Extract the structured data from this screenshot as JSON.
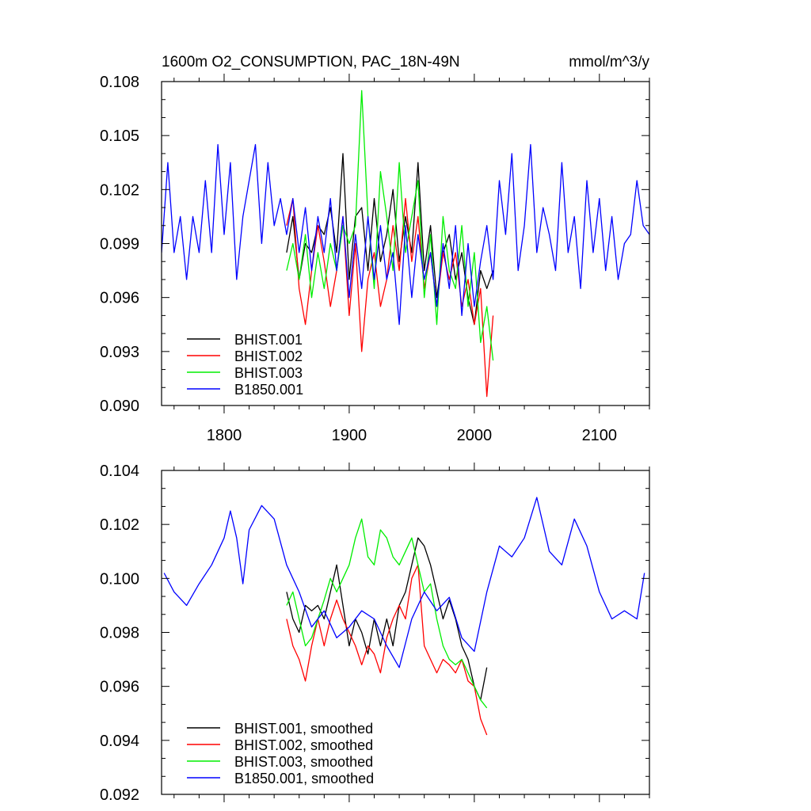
{
  "chart_data": [
    {
      "type": "line",
      "title": "1600m O2_CONSUMPTION, PAC_18N-49N",
      "units": "mmol/m^3/y",
      "xlim": [
        1750,
        2140
      ],
      "ylim": [
        0.09,
        0.108
      ],
      "x_ticks": [
        1800,
        1900,
        2000,
        2100
      ],
      "y_ticks": [
        "0.090",
        "0.093",
        "0.096",
        "0.099",
        "0.102",
        "0.105",
        "0.108"
      ],
      "legend_position": "bottom-left",
      "series": [
        {
          "name": "BHIST.001",
          "color": "#000000",
          "x": [
            1850,
            1855,
            1860,
            1865,
            1870,
            1875,
            1880,
            1885,
            1890,
            1895,
            1900,
            1905,
            1910,
            1915,
            1920,
            1925,
            1930,
            1935,
            1940,
            1945,
            1950,
            1955,
            1960,
            1965,
            1970,
            1975,
            1980,
            1985,
            1990,
            1995,
            2000,
            2005,
            2010,
            2015
          ],
          "y": [
            0.0985,
            0.1005,
            0.097,
            0.099,
            0.0985,
            0.1,
            0.0995,
            0.101,
            0.0985,
            0.104,
            0.097,
            0.1005,
            0.101,
            0.0975,
            0.1015,
            0.098,
            0.0995,
            0.102,
            0.098,
            0.1005,
            0.0985,
            0.1035,
            0.0975,
            0.1,
            0.096,
            0.0985,
            0.0995,
            0.097,
            0.0985,
            0.096,
            0.0945,
            0.0975,
            0.0965,
            0.0975
          ]
        },
        {
          "name": "BHIST.002",
          "color": "#ff0000",
          "x": [
            1850,
            1855,
            1860,
            1865,
            1870,
            1875,
            1880,
            1885,
            1890,
            1895,
            1900,
            1905,
            1910,
            1915,
            1920,
            1925,
            1930,
            1935,
            1940,
            1945,
            1950,
            1955,
            1960,
            1965,
            1970,
            1975,
            1980,
            1985,
            1990,
            1995,
            2000,
            2005,
            2010,
            2015
          ],
          "y": [
            0.1,
            0.1015,
            0.0965,
            0.0945,
            0.0975,
            0.1,
            0.098,
            0.0955,
            0.0975,
            0.1005,
            0.095,
            0.099,
            0.093,
            0.097,
            0.0985,
            0.0955,
            0.097,
            0.1,
            0.0975,
            0.1015,
            0.098,
            0.1005,
            0.0965,
            0.0985,
            0.0955,
            0.0985,
            0.097,
            0.0985,
            0.0955,
            0.097,
            0.0945,
            0.0965,
            0.0905,
            0.095
          ]
        },
        {
          "name": "BHIST.003",
          "color": "#00ee00",
          "x": [
            1850,
            1855,
            1860,
            1865,
            1870,
            1875,
            1880,
            1885,
            1890,
            1895,
            1900,
            1905,
            1910,
            1915,
            1920,
            1925,
            1930,
            1935,
            1940,
            1945,
            1950,
            1955,
            1960,
            1965,
            1970,
            1975,
            1980,
            1985,
            1990,
            1995,
            2000,
            2005,
            2010,
            2015
          ],
          "y": [
            0.0975,
            0.099,
            0.097,
            0.0995,
            0.096,
            0.0985,
            0.0965,
            0.099,
            0.0975,
            0.1,
            0.099,
            0.1,
            0.1075,
            0.1005,
            0.0965,
            0.103,
            0.1005,
            0.0975,
            0.1035,
            0.0985,
            0.1005,
            0.1025,
            0.096,
            0.0995,
            0.0945,
            0.1005,
            0.0975,
            0.0965,
            0.1,
            0.0955,
            0.0985,
            0.0935,
            0.0955,
            0.0925
          ]
        },
        {
          "name": "B1850.001",
          "color": "#0000ff",
          "x": [
            1750,
            1755,
            1760,
            1765,
            1770,
            1775,
            1780,
            1785,
            1790,
            1795,
            1800,
            1805,
            1810,
            1815,
            1820,
            1825,
            1830,
            1835,
            1840,
            1845,
            1850,
            1855,
            1860,
            1865,
            1870,
            1875,
            1880,
            1885,
            1890,
            1895,
            1900,
            1905,
            1910,
            1915,
            1920,
            1925,
            1930,
            1935,
            1940,
            1945,
            1950,
            1955,
            1960,
            1965,
            1970,
            1975,
            1980,
            1985,
            1990,
            1995,
            2000,
            2005,
            2010,
            2015,
            2020,
            2025,
            2030,
            2035,
            2040,
            2045,
            2050,
            2055,
            2060,
            2065,
            2070,
            2075,
            2080,
            2085,
            2090,
            2095,
            2100,
            2105,
            2110,
            2115,
            2120,
            2125,
            2130,
            2135,
            2140
          ],
          "y": [
            0.0985,
            0.1035,
            0.0985,
            0.1005,
            0.097,
            0.1005,
            0.0985,
            0.1025,
            0.0985,
            0.1045,
            0.0995,
            0.1035,
            0.097,
            0.1005,
            0.1025,
            0.1045,
            0.099,
            0.1035,
            0.1,
            0.1015,
            0.0995,
            0.1015,
            0.0985,
            0.101,
            0.0975,
            0.1005,
            0.0985,
            0.1015,
            0.0975,
            0.1005,
            0.096,
            0.0995,
            0.0965,
            0.1005,
            0.097,
            0.1,
            0.097,
            0.0985,
            0.0945,
            0.1,
            0.096,
            0.0995,
            0.097,
            0.0985,
            0.0955,
            0.099,
            0.0965,
            0.1,
            0.095,
            0.099,
            0.0955,
            0.098,
            0.1,
            0.097,
            0.1025,
            0.0995,
            0.104,
            0.0975,
            0.1,
            0.1045,
            0.0985,
            0.101,
            0.0995,
            0.0975,
            0.1035,
            0.0985,
            0.1005,
            0.0965,
            0.1025,
            0.0985,
            0.1015,
            0.0975,
            0.1005,
            0.097,
            0.099,
            0.0995,
            0.1025,
            0.1,
            0.0995
          ]
        }
      ]
    },
    {
      "type": "line",
      "title": "",
      "xlim": [
        1750,
        2140
      ],
      "ylim": [
        0.092,
        0.104
      ],
      "x_ticks": [
        1800,
        1900,
        2000,
        2100
      ],
      "y_ticks": [
        "0.092",
        "0.094",
        "0.096",
        "0.098",
        "0.100",
        "0.102",
        "0.104"
      ],
      "legend_position": "bottom-left",
      "series": [
        {
          "name": "BHIST.001, smoothed",
          "color": "#000000",
          "x": [
            1850,
            1855,
            1860,
            1865,
            1870,
            1875,
            1880,
            1885,
            1890,
            1895,
            1900,
            1905,
            1910,
            1915,
            1920,
            1925,
            1930,
            1935,
            1940,
            1945,
            1950,
            1955,
            1960,
            1965,
            1970,
            1975,
            1980,
            1985,
            1990,
            1995,
            2000,
            2005,
            2010
          ],
          "y": [
            0.0995,
            0.0985,
            0.098,
            0.099,
            0.0988,
            0.099,
            0.0985,
            0.0995,
            0.1005,
            0.099,
            0.0975,
            0.0985,
            0.098,
            0.0972,
            0.0985,
            0.0975,
            0.0985,
            0.0975,
            0.099,
            0.0995,
            0.1005,
            0.1015,
            0.1012,
            0.1005,
            0.0995,
            0.0985,
            0.0992,
            0.0985,
            0.0975,
            0.097,
            0.096,
            0.0955,
            0.0967
          ]
        },
        {
          "name": "BHIST.002, smoothed",
          "color": "#ff0000",
          "x": [
            1850,
            1855,
            1860,
            1865,
            1870,
            1875,
            1880,
            1885,
            1890,
            1895,
            1900,
            1905,
            1910,
            1915,
            1920,
            1925,
            1930,
            1935,
            1940,
            1945,
            1950,
            1955,
            1960,
            1965,
            1970,
            1975,
            1980,
            1985,
            1990,
            1995,
            2000,
            2005,
            2010
          ],
          "y": [
            0.0985,
            0.0975,
            0.097,
            0.0962,
            0.0975,
            0.0985,
            0.0975,
            0.0985,
            0.0992,
            0.0985,
            0.098,
            0.0975,
            0.0968,
            0.0975,
            0.0972,
            0.0965,
            0.0978,
            0.0985,
            0.099,
            0.0985,
            0.1,
            0.1005,
            0.0975,
            0.097,
            0.0965,
            0.097,
            0.0968,
            0.0965,
            0.097,
            0.0962,
            0.096,
            0.0948,
            0.0942
          ]
        },
        {
          "name": "BHIST.003, smoothed",
          "color": "#00ee00",
          "x": [
            1850,
            1855,
            1860,
            1865,
            1870,
            1875,
            1880,
            1885,
            1890,
            1895,
            1900,
            1905,
            1910,
            1915,
            1920,
            1925,
            1930,
            1935,
            1940,
            1945,
            1950,
            1955,
            1960,
            1965,
            1970,
            1975,
            1980,
            1985,
            1990,
            1995,
            2000,
            2005,
            2010
          ],
          "y": [
            0.099,
            0.0995,
            0.0985,
            0.0975,
            0.0978,
            0.0985,
            0.0992,
            0.1,
            0.0995,
            0.1,
            0.1005,
            0.1015,
            0.1022,
            0.1008,
            0.1005,
            0.1018,
            0.1015,
            0.1008,
            0.1005,
            0.101,
            0.1015,
            0.1005,
            0.0995,
            0.0998,
            0.0985,
            0.0975,
            0.097,
            0.0968,
            0.097,
            0.0965,
            0.096,
            0.0955,
            0.0952
          ]
        },
        {
          "name": "B1850.001, smoothed",
          "color": "#0000ff",
          "x": [
            1752,
            1760,
            1770,
            1780,
            1790,
            1800,
            1805,
            1810,
            1815,
            1820,
            1830,
            1840,
            1850,
            1860,
            1870,
            1880,
            1890,
            1900,
            1910,
            1920,
            1930,
            1940,
            1950,
            1960,
            1970,
            1980,
            1990,
            2000,
            2010,
            2020,
            2030,
            2040,
            2050,
            2060,
            2070,
            2080,
            2090,
            2100,
            2110,
            2120,
            2130,
            2136
          ],
          "y": [
            0.1002,
            0.0995,
            0.099,
            0.0998,
            0.1005,
            0.1015,
            0.1025,
            0.1015,
            0.0998,
            0.1018,
            0.1027,
            0.1022,
            0.1005,
            0.0995,
            0.0982,
            0.0988,
            0.0978,
            0.0982,
            0.0988,
            0.0985,
            0.0975,
            0.0967,
            0.0985,
            0.0995,
            0.0988,
            0.0993,
            0.0978,
            0.0973,
            0.0995,
            0.1012,
            0.1008,
            0.1015,
            0.103,
            0.101,
            0.1005,
            0.1022,
            0.1012,
            0.0995,
            0.0985,
            0.0988,
            0.0985,
            0.1002
          ]
        }
      ]
    }
  ]
}
